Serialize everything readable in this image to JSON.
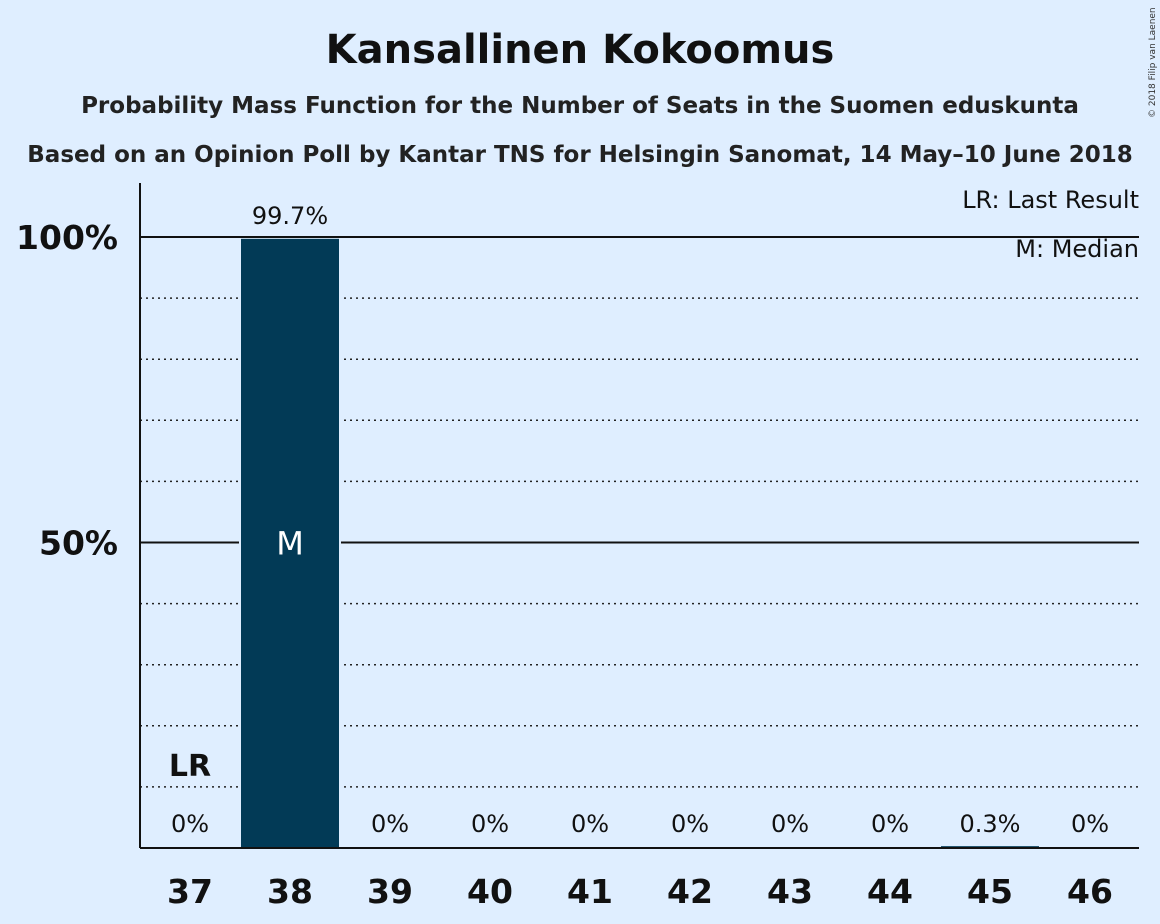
{
  "chart_data": {
    "type": "bar",
    "title": "Kansallinen Kokoomus",
    "subtitle": "Probability Mass Function for the Number of Seats in the Suomen eduskunta",
    "subtitle2": "Based on an Opinion Poll by Kantar TNS for Helsingin Sanomat, 14 May–10 June 2018",
    "categories": [
      "37",
      "38",
      "39",
      "40",
      "41",
      "42",
      "43",
      "44",
      "45",
      "46"
    ],
    "values": [
      0,
      99.7,
      0,
      0,
      0,
      0,
      0,
      0,
      0.3,
      0
    ],
    "data_labels": [
      "0%",
      "99.7%",
      "0%",
      "0%",
      "0%",
      "0%",
      "0%",
      "0%",
      "0.3%",
      "0%"
    ],
    "ylim": [
      0,
      100
    ],
    "yticks": [
      {
        "value": 50,
        "label": "50%"
      },
      {
        "value": 100,
        "label": "100%"
      }
    ],
    "minor_gridlines": [
      10,
      20,
      30,
      40,
      60,
      70,
      80,
      90
    ],
    "bar_color": "#023a56",
    "background_color": "#dfeeff",
    "median_category": "38",
    "median_marker": "M",
    "last_result_category": "37",
    "last_result_marker": "LR",
    "legend": [
      "LR: Last Result",
      "M: Median"
    ],
    "legend_position": "top-right",
    "credit": "© 2018 Filip van Laenen"
  }
}
